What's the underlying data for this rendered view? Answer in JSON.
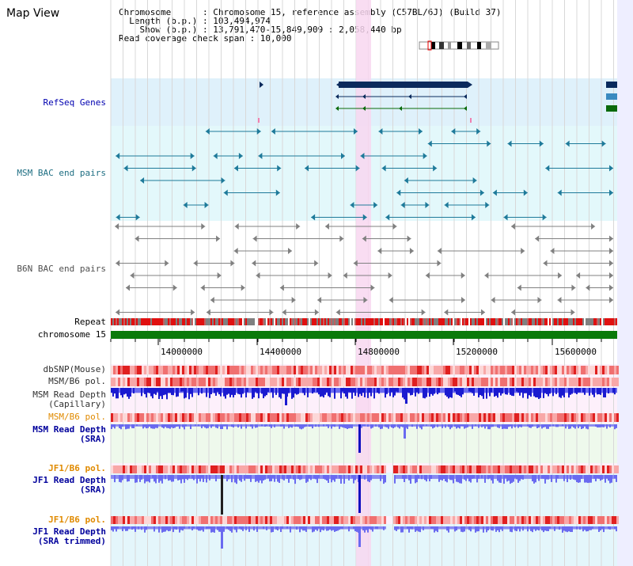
{
  "title": "Map View",
  "info": {
    "chromosome": "Chromosome      : Chromosome 15, reference assembly (C57BL/6J) (Build 37)",
    "length": "  Length (b.p.) : 103,494,974",
    "show": "    Show (b.p.) : 13,791,470-15,849,909 : 2,058,440 bp",
    "coverage": "Read coverage check span : 10,000"
  },
  "tracks": {
    "refseq": "RefSeq Genes",
    "msm_bac": "MSM BAC end pairs",
    "b6n_bac": "B6N BAC end pairs",
    "repeat": "Repeat",
    "chromosome": "chromosome 15",
    "dbsnp": "dbSNP(Mouse)",
    "msm_b6_pol_1": "MSM/B6 pol.",
    "msm_read_depth_cap_1": "MSM Read Depth",
    "msm_read_depth_cap_2": "(Capillary)",
    "msm_b6_pol_2": "MSM/B6 pol.",
    "msm_read_depth_sra_1": "MSM Read Depth",
    "msm_read_depth_sra_2": "(SRA)",
    "jf1_b6_pol_1": "JF1/B6 pol.",
    "jf1_read_depth_sra_1": "JF1 Read Depth",
    "jf1_read_depth_sra_2": "(SRA)",
    "jf1_b6_pol_2": "JF1/B6 pol.",
    "jf1_read_depth_trim_1": "JF1 Read Depth",
    "jf1_read_depth_trim_2": "(SRA trimmed)"
  },
  "axis": {
    "ticks": [
      "14000000",
      "14400000",
      "14800000",
      "15200000",
      "15600000"
    ]
  },
  "colors": {
    "refseq_bg": "#dff1fb",
    "msm_bg": "#e3f8fb",
    "b6n_bg": "#ffffff",
    "highlight": "#f8d7f0",
    "gene": "#0a2a5c",
    "msm_feature": "#1e7a9a",
    "b6n_feature": "#808080",
    "chromosome_bar": "#0a7a0a",
    "depth": "#1a1ad0",
    "depth_light": "#8a8af0",
    "orange_label": "#e08a00",
    "blue_label": "#00009c",
    "teal_label": "#1e6e82"
  }
}
